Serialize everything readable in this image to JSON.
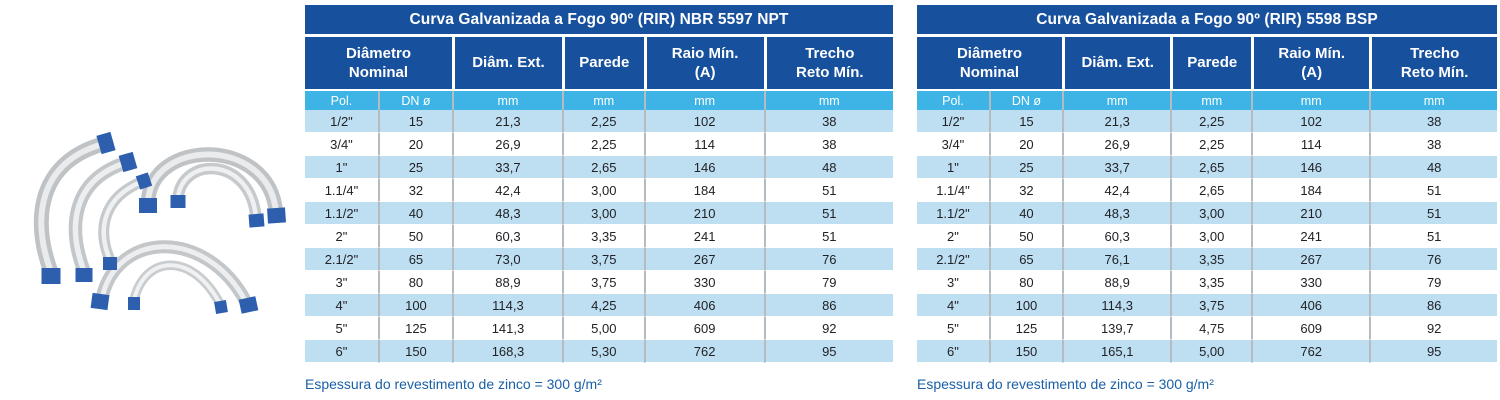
{
  "colors": {
    "header_blue": "#17509D",
    "units_cyan": "#3DB4E5",
    "row_alt_blue": "#BEDFF2",
    "separator_gray": "#b4bcc2",
    "footnote_blue": "#1A5FA8",
    "pipe_gray": "#c1c5c8",
    "pipe_highlight": "#e9ebec",
    "cap_blue": "#2E5FAE"
  },
  "product_image": {
    "label": "Curvas galvanizadas 90º com pontas azuis"
  },
  "tables": [
    {
      "title": "Curva Galvanizada a Fogo 90º (RIR) NBR 5597 NPT",
      "group_header": {
        "line1": "Diâmetro",
        "line2": "Nominal"
      },
      "headers": [
        {
          "line1": "Diâm. Ext.",
          "line2": ""
        },
        {
          "line1": "Parede",
          "line2": ""
        },
        {
          "line1": "Raio Mín.",
          "line2": "(A)"
        },
        {
          "line1": "Trecho",
          "line2": "Reto Mín."
        }
      ],
      "units": [
        "Pol.",
        "DN ø",
        "mm",
        "mm",
        "mm",
        "mm"
      ],
      "rows": [
        [
          "1/2\"",
          "15",
          "21,3",
          "2,25",
          "102",
          "38"
        ],
        [
          "3/4\"",
          "20",
          "26,9",
          "2,25",
          "114",
          "38"
        ],
        [
          "1\"",
          "25",
          "33,7",
          "2,65",
          "146",
          "48"
        ],
        [
          "1.1/4\"",
          "32",
          "42,4",
          "3,00",
          "184",
          "51"
        ],
        [
          "1.1/2\"",
          "40",
          "48,3",
          "3,00",
          "210",
          "51"
        ],
        [
          "2\"",
          "50",
          "60,3",
          "3,35",
          "241",
          "51"
        ],
        [
          "2.1/2\"",
          "65",
          "73,0",
          "3,75",
          "267",
          "76"
        ],
        [
          "3\"",
          "80",
          "88,9",
          "3,75",
          "330",
          "79"
        ],
        [
          "4\"",
          "100",
          "114,3",
          "4,25",
          "406",
          "86"
        ],
        [
          "5\"",
          "125",
          "141,3",
          "5,00",
          "609",
          "92"
        ],
        [
          "6\"",
          "150",
          "168,3",
          "5,30",
          "762",
          "95"
        ]
      ],
      "footnote": "Espessura do revestimento de zinco = 300 g/m²"
    },
    {
      "title": "Curva Galvanizada a Fogo 90º (RIR) 5598 BSP",
      "group_header": {
        "line1": "Diâmetro",
        "line2": "Nominal"
      },
      "headers": [
        {
          "line1": "Diâm. Ext.",
          "line2": ""
        },
        {
          "line1": "Parede",
          "line2": ""
        },
        {
          "line1": "Raio Mín.",
          "line2": "(A)"
        },
        {
          "line1": "Trecho",
          "line2": "Reto Mín."
        }
      ],
      "units": [
        "Pol.",
        "DN ø",
        "mm",
        "mm",
        "mm",
        "mm"
      ],
      "rows": [
        [
          "1/2\"",
          "15",
          "21,3",
          "2,25",
          "102",
          "38"
        ],
        [
          "3/4\"",
          "20",
          "26,9",
          "2,25",
          "114",
          "38"
        ],
        [
          "1\"",
          "25",
          "33,7",
          "2,65",
          "146",
          "48"
        ],
        [
          "1.1/4\"",
          "32",
          "42,4",
          "2,65",
          "184",
          "51"
        ],
        [
          "1.1/2\"",
          "40",
          "48,3",
          "3,00",
          "210",
          "51"
        ],
        [
          "2\"",
          "50",
          "60,3",
          "3,00",
          "241",
          "51"
        ],
        [
          "2.1/2\"",
          "65",
          "76,1",
          "3,35",
          "267",
          "76"
        ],
        [
          "3\"",
          "80",
          "88,9",
          "3,35",
          "330",
          "79"
        ],
        [
          "4\"",
          "100",
          "114,3",
          "3,75",
          "406",
          "86"
        ],
        [
          "5\"",
          "125",
          "139,7",
          "4,75",
          "609",
          "92"
        ],
        [
          "6\"",
          "150",
          "165,1",
          "5,00",
          "762",
          "95"
        ]
      ],
      "footnote": "Espessura do revestimento de zinco = 300 g/m²"
    }
  ]
}
